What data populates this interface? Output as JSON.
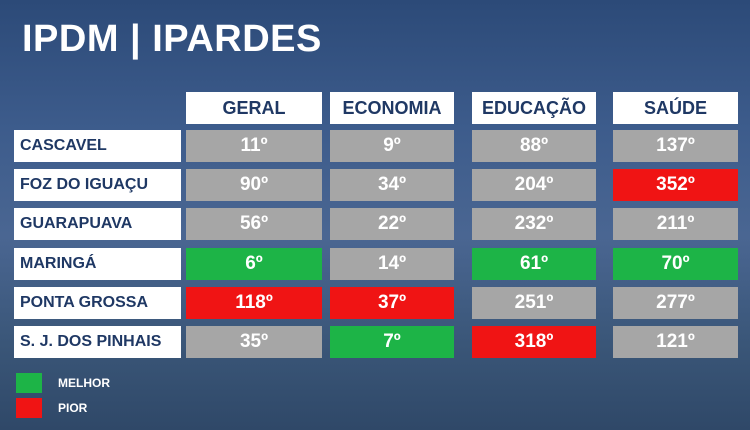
{
  "title": "IPDM | IPARDES",
  "table": {
    "columns": [
      "GERAL",
      "ECONOMIA",
      "EDUCAÇÃO",
      "SAÚDE"
    ],
    "rows": [
      {
        "name": "CASCAVEL",
        "cells": [
          {
            "text": "11º",
            "color": "#a6a6a6"
          },
          {
            "text": "9º",
            "color": "#a6a6a6"
          },
          {
            "text": "88º",
            "color": "#a6a6a6"
          },
          {
            "text": "137º",
            "color": "#a6a6a6"
          }
        ]
      },
      {
        "name": "FOZ DO IGUAÇU",
        "cells": [
          {
            "text": "90º",
            "color": "#a6a6a6"
          },
          {
            "text": "34º",
            "color": "#a6a6a6"
          },
          {
            "text": "204º",
            "color": "#a6a6a6"
          },
          {
            "text": "352º",
            "color": "#f01414"
          }
        ]
      },
      {
        "name": "GUARAPUAVA",
        "cells": [
          {
            "text": "56º",
            "color": "#a6a6a6"
          },
          {
            "text": "22º",
            "color": "#a6a6a6"
          },
          {
            "text": "232º",
            "color": "#a6a6a6"
          },
          {
            "text": "211º",
            "color": "#a6a6a6"
          }
        ]
      },
      {
        "name": "MARINGÁ",
        "cells": [
          {
            "text": "6º",
            "color": "#1db447"
          },
          {
            "text": "14º",
            "color": "#a6a6a6"
          },
          {
            "text": "61º",
            "color": "#1db447"
          },
          {
            "text": "70º",
            "color": "#1db447"
          }
        ]
      },
      {
        "name": "PONTA GROSSA",
        "cells": [
          {
            "text": "118º",
            "color": "#f01414"
          },
          {
            "text": "37º",
            "color": "#f01414"
          },
          {
            "text": "251º",
            "color": "#a6a6a6"
          },
          {
            "text": "277º",
            "color": "#a6a6a6"
          }
        ]
      },
      {
        "name": "S. J. DOS PINHAIS",
        "cells": [
          {
            "text": "35º",
            "color": "#a6a6a6"
          },
          {
            "text": "7º",
            "color": "#1db447"
          },
          {
            "text": "318º",
            "color": "#f01414"
          },
          {
            "text": "121º",
            "color": "#a6a6a6"
          }
        ]
      }
    ]
  },
  "legend": [
    {
      "label": "MELHOR",
      "color": "#1db447"
    },
    {
      "label": "PIOR",
      "color": "#f01414"
    }
  ]
}
